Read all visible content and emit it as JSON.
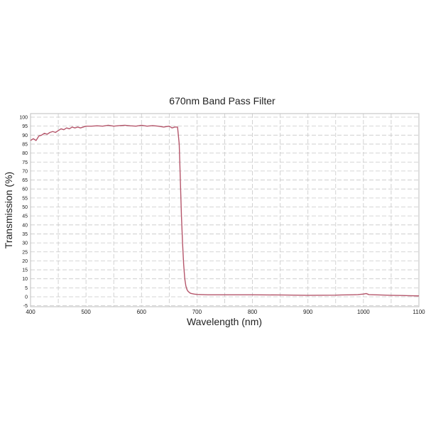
{
  "chart_data": {
    "type": "line",
    "title": "670nm Band Pass Filter",
    "xlabel": "Wavelength (nm)",
    "ylabel": "Transmission (%)",
    "xlim": [
      400,
      1100
    ],
    "ylim": [
      -5,
      100
    ],
    "x_ticks": [
      400,
      500,
      600,
      700,
      800,
      900,
      1000,
      1100
    ],
    "y_ticks": [
      -5,
      0,
      5,
      10,
      15,
      20,
      25,
      30,
      35,
      40,
      45,
      50,
      55,
      60,
      65,
      70,
      75,
      80,
      85,
      90,
      95,
      100
    ],
    "grid": true,
    "line_color": "#b5566b",
    "series": [
      {
        "x": [
          400,
          405,
          410,
          415,
          420,
          425,
          430,
          435,
          440,
          445,
          450,
          455,
          460,
          465,
          470,
          475,
          480,
          485,
          490,
          495,
          500,
          510,
          520,
          530,
          540,
          550,
          560,
          570,
          580,
          590,
          600,
          610,
          620,
          630,
          640,
          650,
          655,
          660,
          665,
          668,
          670,
          672,
          674,
          676,
          678,
          680,
          682,
          684,
          686,
          688,
          690,
          695,
          700,
          710,
          720,
          750,
          800,
          850,
          900,
          950,
          960,
          980,
          990,
          1000,
          1005,
          1010,
          1050,
          1070,
          1080,
          1100
        ],
        "y": [
          87,
          88,
          87,
          89.5,
          90,
          91,
          90.5,
          91.5,
          92,
          91.5,
          92.5,
          93.5,
          93,
          94,
          93.5,
          94.5,
          94,
          94.5,
          94,
          94.5,
          95,
          95,
          95.2,
          95,
          95.5,
          95,
          95.3,
          95.5,
          95.2,
          95,
          95.5,
          95,
          95.3,
          95,
          94.5,
          95,
          94,
          94.5,
          94.5,
          85,
          65,
          45,
          30,
          18,
          10,
          6,
          4,
          3,
          2.5,
          2,
          1.8,
          1.5,
          1.3,
          1.2,
          1.1,
          1.1,
          1.1,
          1.0,
          0.8,
          0.9,
          1.0,
          1.1,
          1.2,
          1.5,
          1.8,
          1.2,
          0.8,
          0.7,
          0.6,
          0.5
        ]
      }
    ]
  }
}
